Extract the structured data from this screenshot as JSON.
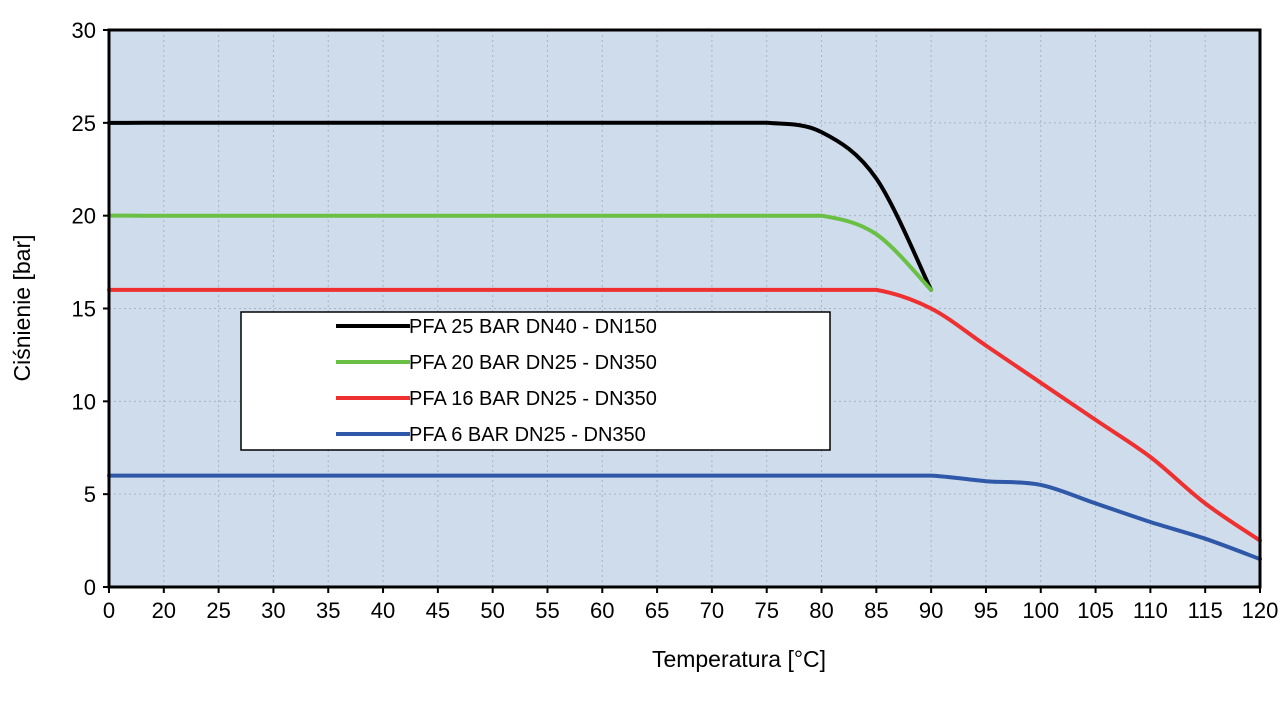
{
  "chart_data": {
    "type": "line",
    "title": "",
    "xlabel": "Temperatura [°C]",
    "ylabel": "Ciśnienie [bar]",
    "x_tick_labels": [
      "0",
      "20",
      "25",
      "30",
      "35",
      "40",
      "45",
      "50",
      "55",
      "60",
      "65",
      "70",
      "75",
      "80",
      "85",
      "90",
      "95",
      "100",
      "105",
      "110",
      "115",
      "120"
    ],
    "y_ticks": [
      0,
      5,
      10,
      15,
      20,
      25,
      30
    ],
    "ylim": [
      0,
      30
    ],
    "grid": true,
    "plot_background": "#cfdcec",
    "legend_position": "center-left",
    "series": [
      {
        "name": "PFA 25 BAR DN40 - DN150",
        "color": "#000000",
        "x": [
          "0",
          "20",
          "25",
          "30",
          "35",
          "40",
          "45",
          "50",
          "55",
          "60",
          "65",
          "70",
          "75",
          "80",
          "85",
          "90"
        ],
        "y": [
          25,
          25,
          25,
          25,
          25,
          25,
          25,
          25,
          25,
          25,
          25,
          25,
          25,
          24.5,
          22,
          16
        ]
      },
      {
        "name": "PFA 20 BAR DN25 - DN350",
        "color": "#6abf45",
        "x": [
          "0",
          "20",
          "25",
          "30",
          "35",
          "40",
          "45",
          "50",
          "55",
          "60",
          "65",
          "70",
          "75",
          "80",
          "85",
          "90"
        ],
        "y": [
          20,
          20,
          20,
          20,
          20,
          20,
          20,
          20,
          20,
          20,
          20,
          20,
          20,
          20,
          19,
          16
        ]
      },
      {
        "name": "PFA 16 BAR DN25 - DN350",
        "color": "#ee3030",
        "x": [
          "0",
          "20",
          "25",
          "30",
          "35",
          "40",
          "45",
          "50",
          "55",
          "60",
          "65",
          "70",
          "75",
          "80",
          "85",
          "90",
          "95",
          "100",
          "105",
          "110",
          "115",
          "120"
        ],
        "y": [
          16,
          16,
          16,
          16,
          16,
          16,
          16,
          16,
          16,
          16,
          16,
          16,
          16,
          16,
          16,
          15,
          13,
          11,
          9,
          7,
          4.5,
          2.5
        ]
      },
      {
        "name": "PFA 6 BAR DN25 - DN350",
        "color": "#2f59a8",
        "x": [
          "0",
          "20",
          "25",
          "30",
          "35",
          "40",
          "45",
          "50",
          "55",
          "60",
          "65",
          "70",
          "75",
          "80",
          "85",
          "90",
          "95",
          "100",
          "105",
          "110",
          "115",
          "120"
        ],
        "y": [
          6,
          6,
          6,
          6,
          6,
          6,
          6,
          6,
          6,
          6,
          6,
          6,
          6,
          6,
          6,
          6,
          5.7,
          5.5,
          4.5,
          3.5,
          2.6,
          1.5
        ]
      }
    ]
  }
}
